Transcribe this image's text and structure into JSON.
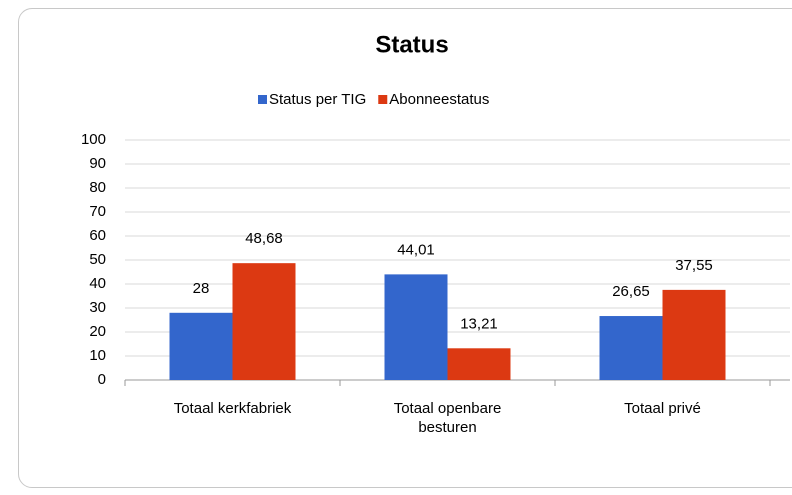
{
  "chart_data": {
    "type": "bar",
    "title": "Status",
    "categories": [
      "Totaal kerkfabriek",
      "Totaal openbare besturen",
      "Totaal privé"
    ],
    "series": [
      {
        "name": "Status per TIG",
        "color": "#3366cc",
        "values": [
          28,
          44.01,
          26.65
        ],
        "value_labels": [
          "28",
          "44,01",
          "26,65"
        ]
      },
      {
        "name": "Abonneestatus",
        "color": "#dc3912",
        "values": [
          48.68,
          13.21,
          37.55
        ],
        "value_labels": [
          "48,68",
          "13,21",
          "37,55"
        ]
      }
    ],
    "ylim": [
      0,
      100
    ],
    "yticks": [
      0,
      10,
      20,
      30,
      40,
      50,
      60,
      70,
      80,
      90,
      100
    ],
    "grid": true,
    "legend": "top"
  }
}
